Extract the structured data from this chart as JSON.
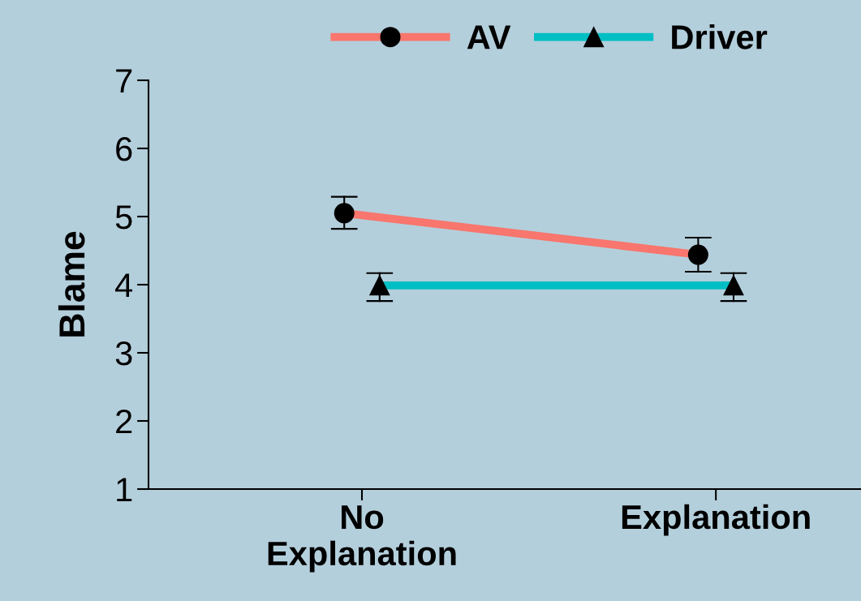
{
  "chart_data": {
    "type": "line",
    "ylabel": "Blame",
    "categories": [
      "No\nExplanation",
      "Explanation"
    ],
    "series": [
      {
        "name": "AV",
        "color": "#f8766d",
        "marker": "circle",
        "values": [
          5.05,
          4.44
        ],
        "errors": [
          [
            4.82,
            5.29
          ],
          [
            4.19,
            4.69
          ]
        ]
      },
      {
        "name": "Driver",
        "color": "#00bfc4",
        "marker": "triangle",
        "values": [
          3.99,
          3.99
        ],
        "errors": [
          [
            3.76,
            4.17
          ],
          [
            3.76,
            4.17
          ]
        ]
      }
    ],
    "ylim": [
      1,
      7
    ],
    "yticks": [
      1,
      2,
      3,
      4,
      5,
      6,
      7
    ],
    "grid": false,
    "legend": "top"
  }
}
